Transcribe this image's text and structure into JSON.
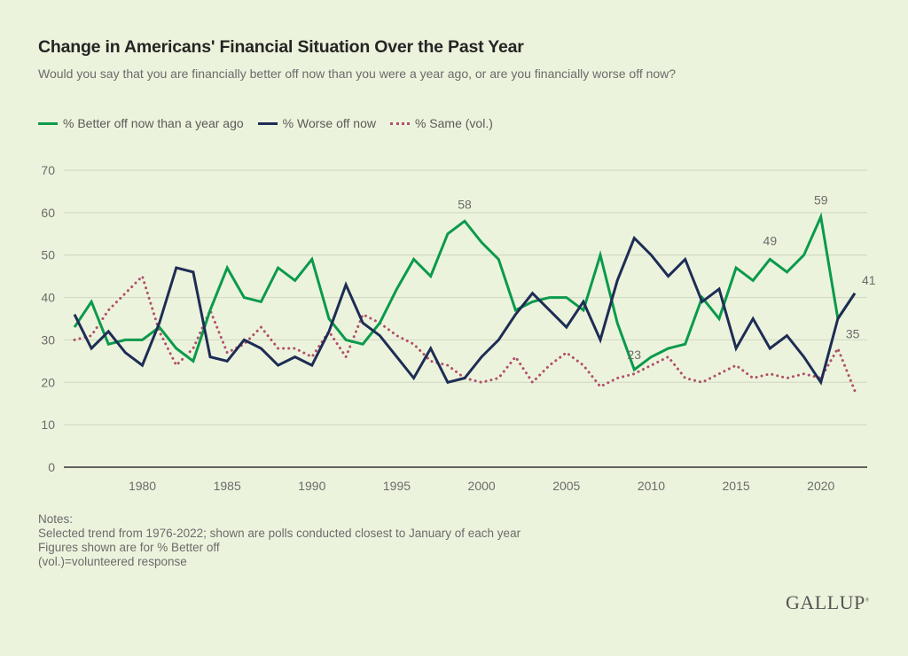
{
  "header": {
    "title": "Change in Americans' Financial Situation Over the Past Year",
    "subtitle": "Would you say that you are financially better off now than you were a year ago, or are you financially worse off now?"
  },
  "notes": [
    "Notes:",
    "Selected trend from 1976-2022; shown are polls conducted closest to January of each year",
    "Figures shown are for % Better off",
    "(vol.)=volunteered response"
  ],
  "logo": "GALLUP",
  "chart_data": {
    "type": "line",
    "title": "Change in Americans' Financial Situation Over the Past Year",
    "xlabel": "",
    "ylabel": "",
    "ylim": [
      0,
      70
    ],
    "xlim": [
      1976,
      2022
    ],
    "grid": true,
    "legend_position": "top-left",
    "y_ticks": [
      0,
      10,
      20,
      30,
      40,
      50,
      60,
      70
    ],
    "x_ticks": [
      1980,
      1985,
      1990,
      1995,
      2000,
      2005,
      2010,
      2015,
      2020
    ],
    "x": [
      1976,
      1977,
      1978,
      1979,
      1980,
      1981,
      1982,
      1983,
      1984,
      1985,
      1986,
      1987,
      1988,
      1989,
      1990,
      1991,
      1992,
      1993,
      1994,
      1995,
      1996,
      1997,
      1998,
      1999,
      2000,
      2001,
      2002,
      2003,
      2004,
      2005,
      2006,
      2007,
      2008,
      2009,
      2010,
      2011,
      2012,
      2013,
      2014,
      2015,
      2016,
      2017,
      2018,
      2019,
      2020,
      2021,
      2022
    ],
    "series": [
      {
        "name": "% Better off now than a year ago",
        "color": "#0b9a4c",
        "style": "solid",
        "values": [
          33,
          39,
          29,
          30,
          30,
          33,
          28,
          25,
          37,
          47,
          40,
          39,
          47,
          44,
          49,
          35,
          30,
          29,
          34,
          42,
          49,
          45,
          55,
          58,
          53,
          49,
          37,
          39,
          40,
          40,
          37,
          50,
          34,
          23,
          26,
          28,
          29,
          40,
          35,
          47,
          44,
          49,
          46,
          50,
          59,
          35,
          41
        ]
      },
      {
        "name": "% Worse off now",
        "color": "#1e2d55",
        "style": "solid",
        "values": [
          36,
          28,
          32,
          27,
          24,
          34,
          47,
          46,
          26,
          25,
          30,
          28,
          24,
          26,
          24,
          32,
          43,
          34,
          31,
          26,
          21,
          28,
          20,
          21,
          26,
          30,
          36,
          41,
          37,
          33,
          39,
          30,
          44,
          54,
          50,
          45,
          49,
          39,
          42,
          28,
          35,
          28,
          31,
          26,
          20,
          35,
          41
        ]
      },
      {
        "name": "% Same (vol.)",
        "color": "#b0506a",
        "style": "dotted",
        "values": [
          30,
          31,
          37,
          41,
          45,
          32,
          24,
          28,
          37,
          27,
          29,
          33,
          28,
          28,
          26,
          32,
          26,
          36,
          34,
          31,
          29,
          25,
          24,
          21,
          20,
          21,
          26,
          20,
          24,
          27,
          24,
          19,
          21,
          22,
          24,
          26,
          21,
          20,
          22,
          24,
          21,
          22,
          21,
          22,
          21,
          28,
          18
        ]
      }
    ],
    "annotations": [
      {
        "series": 0,
        "x": 1999,
        "text": "58"
      },
      {
        "series": 0,
        "x": 2009,
        "text": "23"
      },
      {
        "series": 0,
        "x": 2017,
        "text": "49"
      },
      {
        "series": 0,
        "x": 2020,
        "text": "59"
      },
      {
        "series": 0,
        "x": 2021,
        "text": "35"
      },
      {
        "series": 0,
        "x": 2022,
        "text": "41"
      }
    ]
  }
}
